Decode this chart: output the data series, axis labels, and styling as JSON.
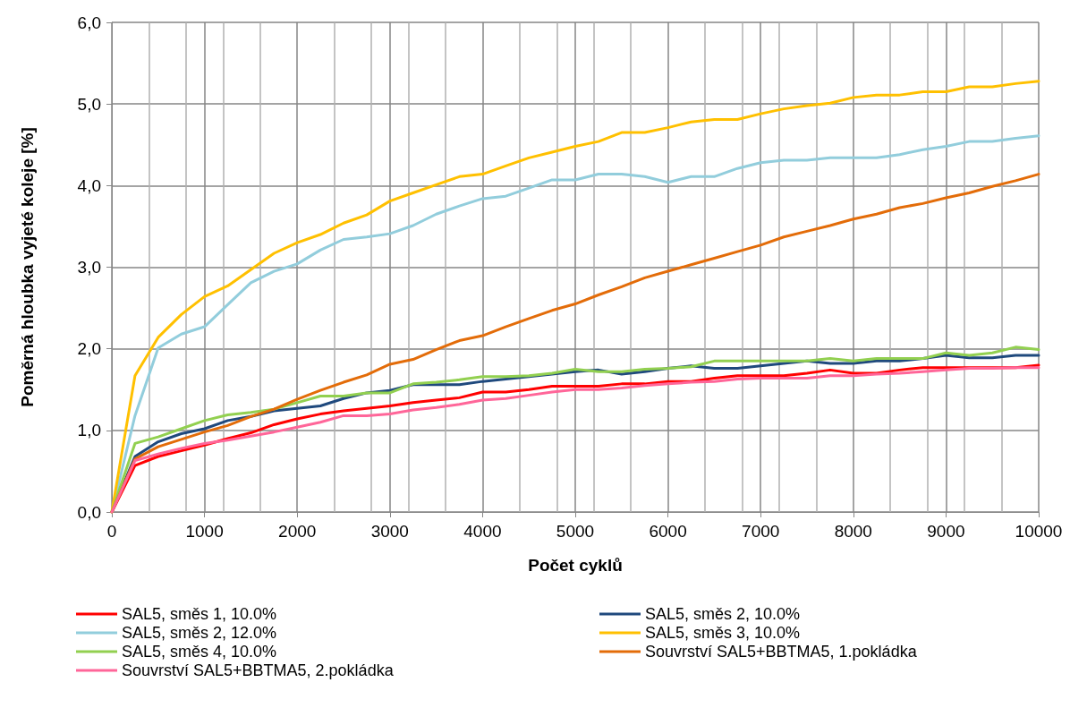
{
  "chart_data": {
    "type": "line",
    "xlabel": "Počet cyklů",
    "ylabel": "Poměrná hloubka vyjeté koleje [%]",
    "x": [
      0,
      250,
      500,
      750,
      1000,
      1250,
      1500,
      1750,
      2000,
      2250,
      2500,
      2750,
      3000,
      3250,
      3500,
      3750,
      4000,
      4250,
      4500,
      4750,
      5000,
      5250,
      5500,
      5750,
      6000,
      6250,
      6500,
      6750,
      7000,
      7250,
      7500,
      7750,
      8000,
      8250,
      8500,
      8750,
      9000,
      9250,
      9500,
      9750,
      10000
    ],
    "series": [
      {
        "name": "SAL5, směs 1, 10.0%",
        "color": "#ff0000",
        "values": [
          0,
          0.57,
          0.68,
          0.75,
          0.82,
          0.9,
          0.97,
          1.07,
          1.14,
          1.2,
          1.24,
          1.27,
          1.3,
          1.34,
          1.37,
          1.4,
          1.47,
          1.47,
          1.5,
          1.54,
          1.54,
          1.54,
          1.57,
          1.57,
          1.6,
          1.6,
          1.64,
          1.67,
          1.67,
          1.67,
          1.7,
          1.74,
          1.7,
          1.7,
          1.74,
          1.77,
          1.77,
          1.77,
          1.77,
          1.77,
          1.8
        ]
      },
      {
        "name": "SAL5, směs 2, 10.0%",
        "color": "#1f497d",
        "values": [
          0,
          0.68,
          0.86,
          0.96,
          1.02,
          1.12,
          1.17,
          1.24,
          1.27,
          1.3,
          1.39,
          1.46,
          1.49,
          1.56,
          1.56,
          1.56,
          1.6,
          1.63,
          1.66,
          1.69,
          1.72,
          1.74,
          1.69,
          1.72,
          1.76,
          1.79,
          1.76,
          1.76,
          1.79,
          1.82,
          1.85,
          1.82,
          1.82,
          1.85,
          1.85,
          1.88,
          1.92,
          1.89,
          1.89,
          1.92,
          1.92
        ]
      },
      {
        "name": "SAL5, směs 2, 12.0%",
        "color": "#92cddc",
        "values": [
          0,
          1.18,
          2.01,
          2.18,
          2.27,
          2.54,
          2.81,
          2.95,
          3.04,
          3.21,
          3.34,
          3.37,
          3.41,
          3.51,
          3.65,
          3.75,
          3.84,
          3.87,
          3.97,
          4.07,
          4.07,
          4.14,
          4.14,
          4.11,
          4.04,
          4.11,
          4.11,
          4.21,
          4.28,
          4.31,
          4.31,
          4.34,
          4.34,
          4.34,
          4.38,
          4.44,
          4.48,
          4.54,
          4.54,
          4.58,
          4.61
        ]
      },
      {
        "name": "SAL5, směs 3, 10.0%",
        "color": "#ffc000",
        "values": [
          0,
          1.67,
          2.14,
          2.42,
          2.64,
          2.77,
          2.97,
          3.17,
          3.3,
          3.4,
          3.54,
          3.64,
          3.81,
          3.91,
          4.01,
          4.11,
          4.14,
          4.24,
          4.34,
          4.41,
          4.48,
          4.54,
          4.65,
          4.65,
          4.71,
          4.78,
          4.81,
          4.81,
          4.88,
          4.94,
          4.98,
          5.01,
          5.08,
          5.11,
          5.11,
          5.15,
          5.15,
          5.21,
          5.21,
          5.25,
          5.28
        ]
      },
      {
        "name": "SAL5, směs 4, 10.0%",
        "color": "#92d050",
        "values": [
          0,
          0.84,
          0.92,
          1.02,
          1.12,
          1.19,
          1.22,
          1.26,
          1.34,
          1.42,
          1.42,
          1.46,
          1.46,
          1.57,
          1.59,
          1.62,
          1.66,
          1.66,
          1.67,
          1.7,
          1.75,
          1.72,
          1.72,
          1.75,
          1.76,
          1.78,
          1.85,
          1.85,
          1.85,
          1.85,
          1.85,
          1.88,
          1.85,
          1.88,
          1.88,
          1.88,
          1.95,
          1.92,
          1.95,
          2.02,
          1.99
        ]
      },
      {
        "name": "Souvrství SAL5+BBTMA5, 1.pokládka",
        "color": "#e36c09",
        "values": [
          0,
          0.65,
          0.8,
          0.89,
          0.98,
          1.06,
          1.17,
          1.26,
          1.38,
          1.49,
          1.59,
          1.68,
          1.81,
          1.87,
          1.99,
          2.1,
          2.16,
          2.27,
          2.37,
          2.47,
          2.55,
          2.66,
          2.76,
          2.87,
          2.95,
          3.03,
          3.11,
          3.19,
          3.27,
          3.37,
          3.44,
          3.51,
          3.59,
          3.65,
          3.73,
          3.78,
          3.85,
          3.91,
          3.99,
          4.06,
          4.14
        ]
      },
      {
        "name": "Souvrství SAL5+BBTMA5, 2.pokládka",
        "color": "#ff6699",
        "values": [
          0,
          0.63,
          0.71,
          0.78,
          0.84,
          0.88,
          0.93,
          0.98,
          1.04,
          1.1,
          1.18,
          1.18,
          1.2,
          1.25,
          1.28,
          1.32,
          1.37,
          1.39,
          1.43,
          1.47,
          1.5,
          1.5,
          1.52,
          1.55,
          1.57,
          1.59,
          1.6,
          1.63,
          1.64,
          1.64,
          1.64,
          1.67,
          1.67,
          1.69,
          1.7,
          1.72,
          1.74,
          1.76,
          1.76,
          1.77,
          1.77
        ]
      }
    ],
    "xlim": [
      0,
      10000
    ],
    "xticks": [
      0,
      1000,
      2000,
      3000,
      4000,
      5000,
      6000,
      7000,
      8000,
      9000,
      10000
    ],
    "ylim": [
      0,
      6
    ],
    "yticks": [
      {
        "value": 0,
        "label": "0,0"
      },
      {
        "value": 1,
        "label": "1,0"
      },
      {
        "value": 2,
        "label": "2,0"
      },
      {
        "value": 3,
        "label": "3,0"
      },
      {
        "value": 4,
        "label": "4,0"
      },
      {
        "value": 5,
        "label": "5,0"
      },
      {
        "value": 6,
        "label": "6,0"
      }
    ],
    "grid": true,
    "legend": "bottom",
    "marker": "none",
    "line_style": "solid"
  }
}
